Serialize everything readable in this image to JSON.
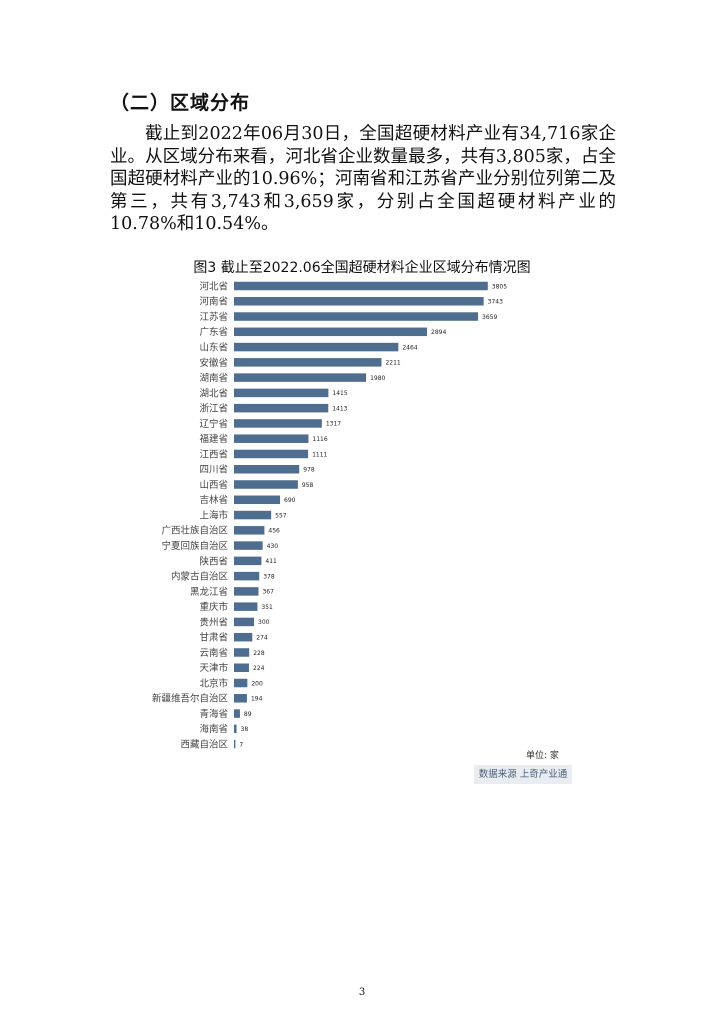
{
  "section": {
    "heading": "（二）区域分布",
    "paragraph": "截止到2022年06月30日，全国超硬材料产业有34,716家企业。从区域分布来看，河北省企业数量最多，共有3,805家，占全国超硬材料产业的10.96%；河南省和江苏省产业分别位列第二及第三，共有3,743和3,659家，分别占全国超硬材料产业的10.78%和10.54%。"
  },
  "chart_data": {
    "type": "bar",
    "orientation": "horizontal",
    "title": "图3 截止至2022.06全国超硬材料企业区域分布情况图",
    "categories": [
      "河北省",
      "河南省",
      "江苏省",
      "广东省",
      "山东省",
      "安徽省",
      "湖南省",
      "湖北省",
      "浙江省",
      "辽宁省",
      "福建省",
      "江西省",
      "四川省",
      "山西省",
      "吉林省",
      "上海市",
      "广西壮族自治区",
      "宁夏回族自治区",
      "陕西省",
      "内蒙古自治区",
      "黑龙江省",
      "重庆市",
      "贵州省",
      "甘肃省",
      "云南省",
      "天津市",
      "北京市",
      "新疆维吾尔自治区",
      "青海省",
      "海南省",
      "西藏自治区"
    ],
    "values": [
      3805,
      3743,
      3659,
      2894,
      2464,
      2211,
      1980,
      1415,
      1413,
      1317,
      1116,
      1111,
      978,
      958,
      690,
      557,
      456,
      430,
      411,
      378,
      367,
      351,
      300,
      274,
      228,
      224,
      200,
      194,
      89,
      38,
      7
    ],
    "value_labels": [
      "3805",
      "3743",
      "3659",
      "2894",
      "2464",
      "2211",
      "1980",
      "1415",
      "1413",
      "1317",
      "1116",
      "1111",
      "978",
      "958",
      "690",
      "557",
      "456",
      "430",
      "411",
      "378",
      "367",
      "351",
      "300",
      "274",
      "228",
      "224",
      "200",
      "194",
      "89",
      "38",
      "7"
    ],
    "unit_label": "单位: 家",
    "source_label": "数据来源 上奇产业通",
    "bar_color": "#4f6d8f",
    "grid": false,
    "legend": "none"
  },
  "footer": {
    "page_number": "3"
  }
}
